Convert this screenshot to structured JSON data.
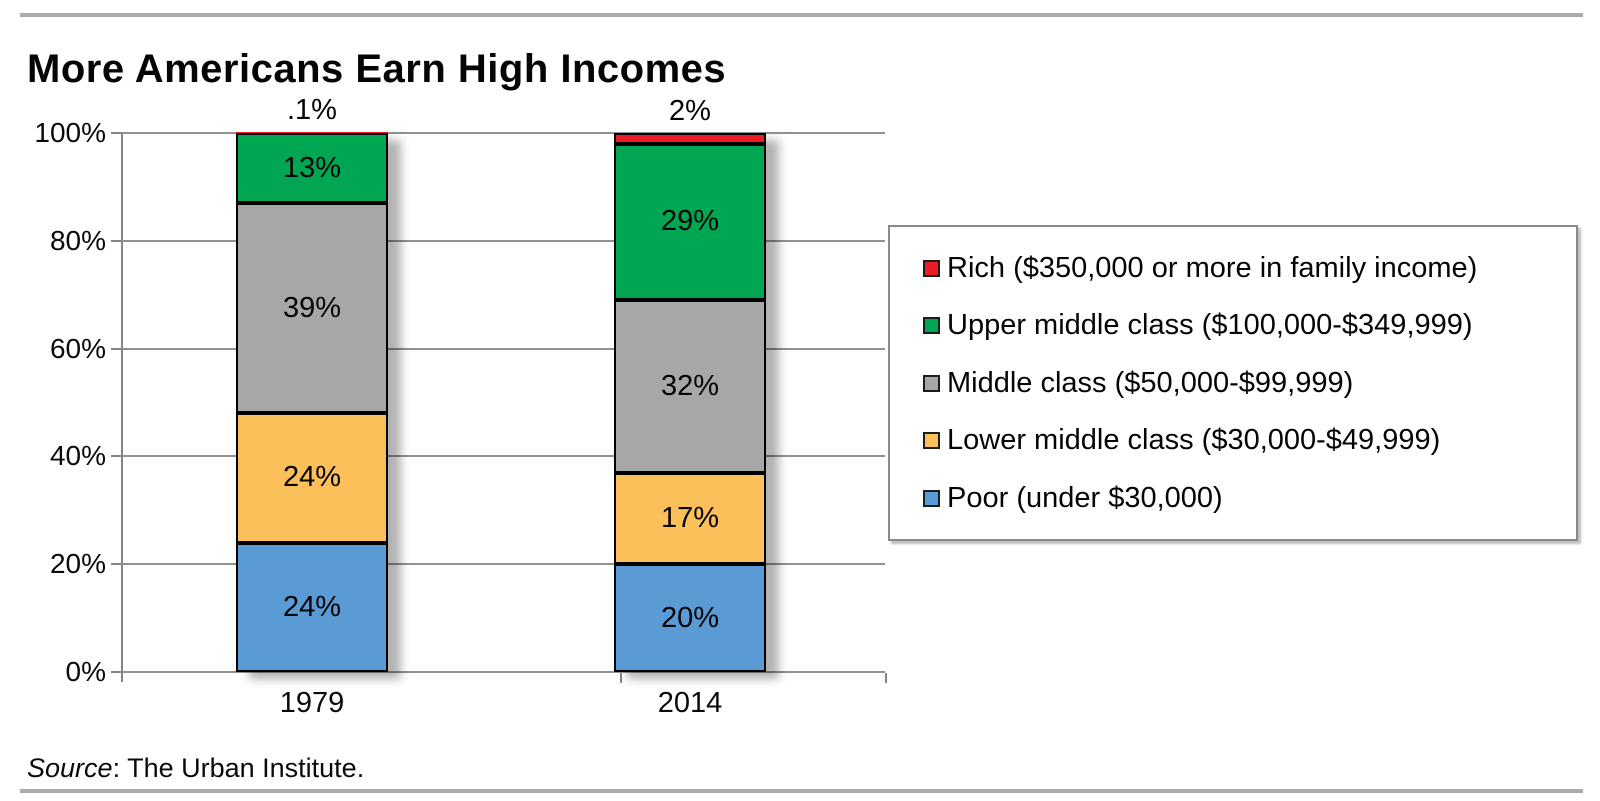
{
  "page": {
    "title": "More Americans Earn High Incomes",
    "source_word": "Source",
    "source_rest": ": The Urban Institute."
  },
  "chart_data": {
    "type": "bar",
    "stacked": true,
    "title": "More Americans Earn High Incomes",
    "categories": [
      "1979",
      "2014"
    ],
    "series": [
      {
        "name": "Poor (under $30,000)",
        "color": "#5B9BD5",
        "values": [
          24,
          20
        ],
        "labels": [
          "24%",
          "20%"
        ],
        "label_position": "inside"
      },
      {
        "name": "Lower middle class ($30,000-$49,999)",
        "color": "#FBC05A",
        "values": [
          24,
          17
        ],
        "labels": [
          "24%",
          "17%"
        ],
        "label_position": "inside"
      },
      {
        "name": "Middle class ($50,000-$99,999)",
        "color": "#A7A7A7",
        "values": [
          39,
          32
        ],
        "labels": [
          "39%",
          "32%"
        ],
        "label_position": "inside"
      },
      {
        "name": "Upper middle class ($100,000-$349,999)",
        "color": "#00A651",
        "values": [
          13,
          29
        ],
        "labels": [
          "13%",
          "29%"
        ],
        "label_position": "inside"
      },
      {
        "name": "Rich ($350,000 or more in family income)",
        "color": "#EC1C24",
        "values": [
          0.1,
          2
        ],
        "labels": [
          ".1%",
          "2%"
        ],
        "label_position": "above"
      }
    ],
    "ylabel": "",
    "xlabel": "",
    "ylim": [
      0,
      100
    ],
    "yticks": [
      "0%",
      "20%",
      "40%",
      "60%",
      "80%",
      "100%"
    ],
    "grid": true,
    "legend_position": "right",
    "source": "Source: The Urban Institute."
  }
}
